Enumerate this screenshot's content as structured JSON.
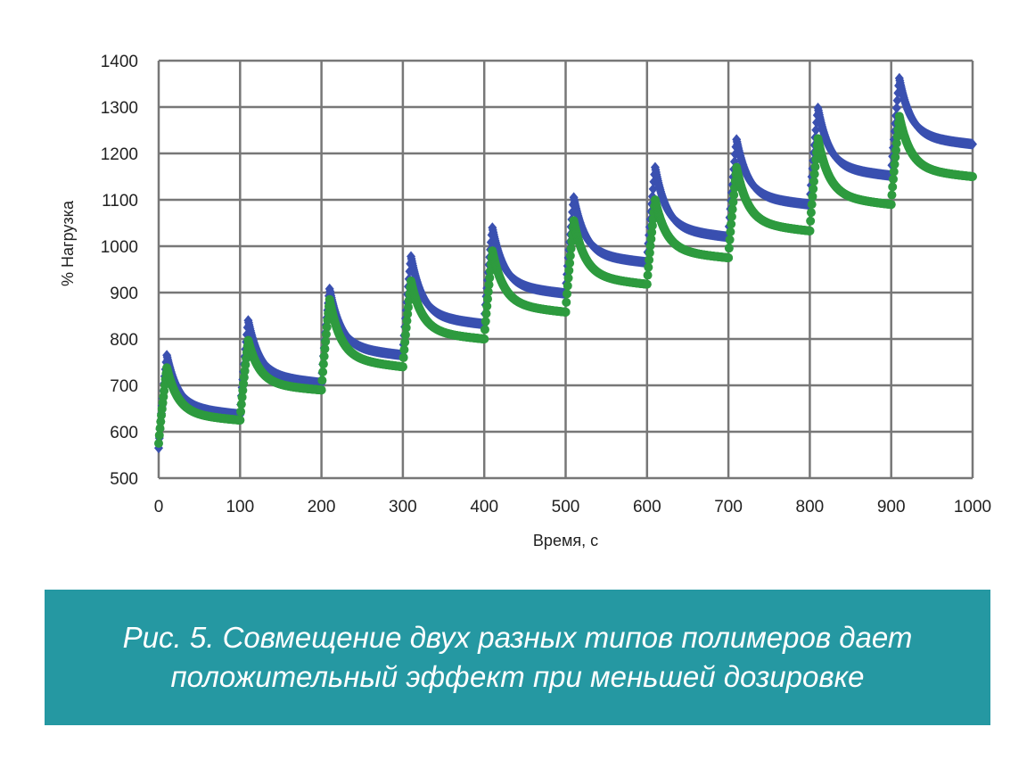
{
  "chart_data": {
    "type": "scatter",
    "title": "",
    "xlabel": "Время, с",
    "ylabel": "% Нагрузка",
    "xlim": [
      0,
      1000
    ],
    "ylim": [
      500,
      1400
    ],
    "x_ticks": [
      "0",
      "100",
      "200",
      "300",
      "400",
      "500",
      "600",
      "700",
      "800",
      "900",
      "1000"
    ],
    "y_ticks": [
      "500",
      "600",
      "700",
      "800",
      "900",
      "1000",
      "1100",
      "1200",
      "1300",
      "1400"
    ],
    "grid": true,
    "legend": "none",
    "cycle_period": 100,
    "rise_duration": 10,
    "series": [
      {
        "color": "#3a50b0",
        "marker": "diamond",
        "cycles": [
          {
            "start": 565,
            "peak": 765,
            "end": 637
          },
          {
            "start": 637,
            "peak": 840,
            "end": 705
          },
          {
            "start": 705,
            "peak": 908,
            "end": 765
          },
          {
            "start": 765,
            "peak": 978,
            "end": 832
          },
          {
            "start": 832,
            "peak": 1040,
            "end": 898
          },
          {
            "start": 898,
            "peak": 1105,
            "end": 965
          },
          {
            "start": 965,
            "peak": 1170,
            "end": 1020
          },
          {
            "start": 1020,
            "peak": 1230,
            "end": 1090
          },
          {
            "start": 1090,
            "peak": 1298,
            "end": 1152
          },
          {
            "start": 1152,
            "peak": 1362,
            "end": 1220
          }
        ]
      },
      {
        "color": "#2e9b3f",
        "marker": "circle",
        "cycles": [
          {
            "start": 575,
            "peak": 738,
            "end": 625
          },
          {
            "start": 625,
            "peak": 797,
            "end": 690
          },
          {
            "start": 690,
            "peak": 885,
            "end": 740
          },
          {
            "start": 740,
            "peak": 925,
            "end": 800
          },
          {
            "start": 800,
            "peak": 990,
            "end": 858
          },
          {
            "start": 858,
            "peak": 1055,
            "end": 918
          },
          {
            "start": 918,
            "peak": 1100,
            "end": 975
          },
          {
            "start": 975,
            "peak": 1170,
            "end": 1033
          },
          {
            "start": 1033,
            "peak": 1232,
            "end": 1090
          },
          {
            "start": 1090,
            "peak": 1280,
            "end": 1150
          }
        ]
      }
    ]
  },
  "caption": {
    "line1": "Рис. 5. Совмещение двух разных типов полимеров дает",
    "line2": "положительный эффект при меньшей дозировке"
  }
}
